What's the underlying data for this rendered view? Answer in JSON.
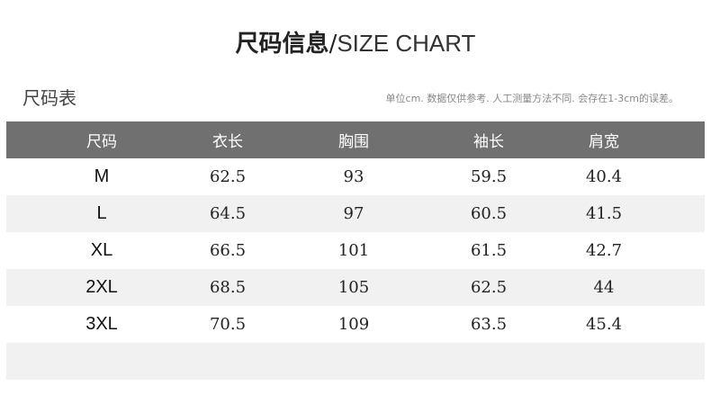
{
  "title": {
    "cn": "尺码信息",
    "sep": "/",
    "en": "SIZE CHART"
  },
  "subtitle": "尺码表",
  "note": "单位cm. 数据仅供参考. 人工测量方法不同. 会存在1-3cm的误差。",
  "headers": [
    "尺码",
    "衣长",
    "胸围",
    "袖长",
    "肩宽"
  ],
  "rows": [
    [
      "M",
      "62.5",
      "93",
      "59.5",
      "40.4"
    ],
    [
      "L",
      "64.5",
      "97",
      "60.5",
      "41.5"
    ],
    [
      "XL",
      "66.5",
      "101",
      "61.5",
      "42.7"
    ],
    [
      "2XL",
      "68.5",
      "105",
      "62.5",
      "44"
    ],
    [
      "3XL",
      "70.5",
      "109",
      "63.5",
      "45.4"
    ]
  ]
}
